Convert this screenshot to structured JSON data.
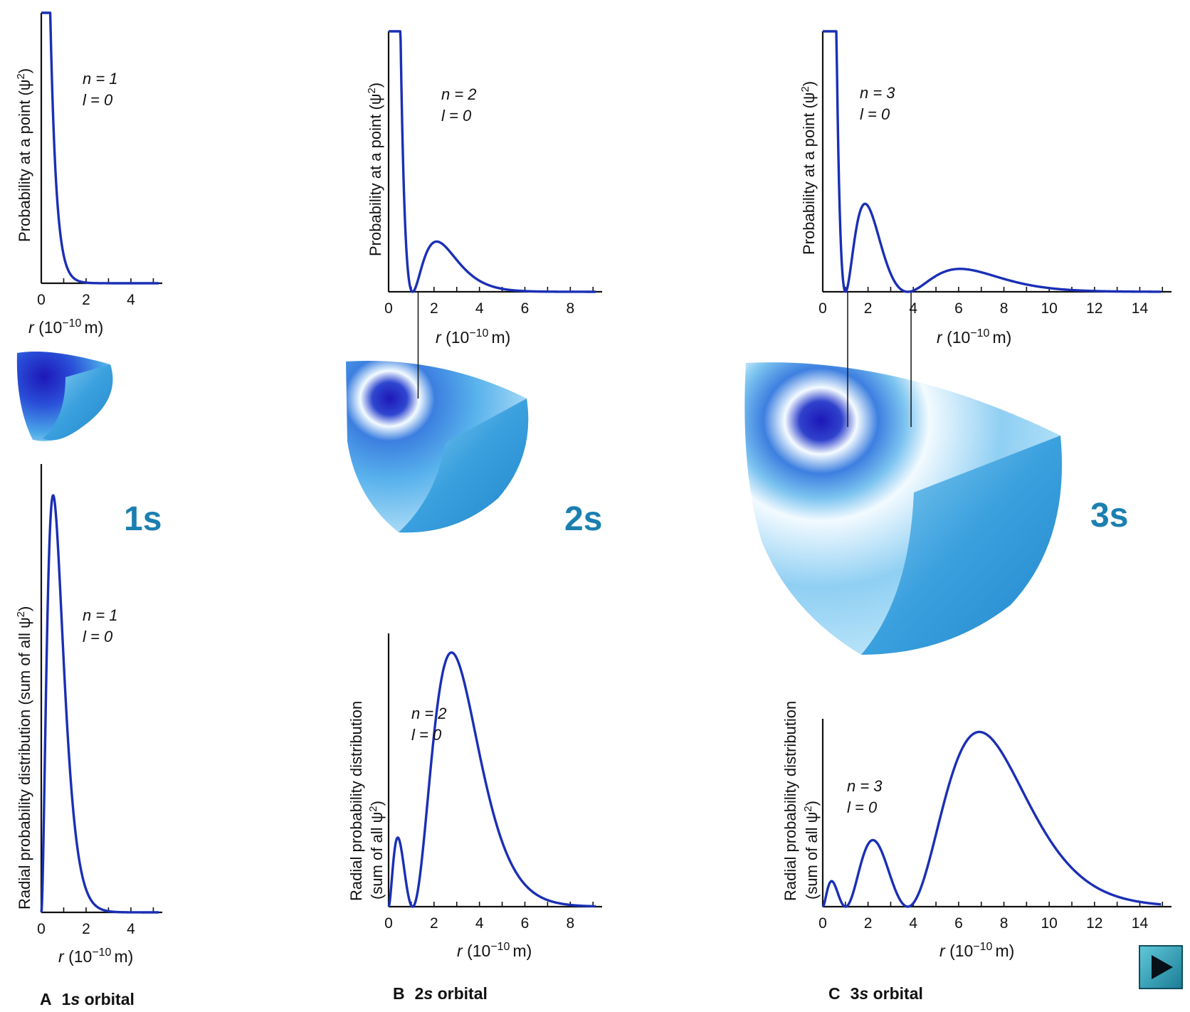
{
  "chart_data": [
    {
      "type": "line",
      "panel": "A-top",
      "ylabel": "Probability at a point (ψ²)",
      "xlabel": "r (10⁻¹⁰ m)",
      "x_ticks": [
        0,
        2,
        4
      ],
      "xlim": [
        0,
        5.4
      ],
      "annotation": [
        "n = 1",
        "l = 0"
      ],
      "series": [
        {
          "function": "psi2",
          "n": 1
        }
      ]
    },
    {
      "type": "line",
      "panel": "B-top",
      "ylabel": "Probability at a point (ψ²)",
      "xlabel": "r (10⁻¹⁰ m)",
      "x_ticks": [
        0,
        2,
        4,
        6,
        8
      ],
      "xlim": [
        0,
        9.4
      ],
      "annotation": [
        "n = 2",
        "l = 0"
      ],
      "node_guides": [
        1.3
      ],
      "series": [
        {
          "function": "psi2",
          "n": 2
        }
      ]
    },
    {
      "type": "line",
      "panel": "C-top",
      "ylabel": "Probability at a point (ψ²)",
      "xlabel": "r (10⁻¹⁰ m)",
      "x_ticks": [
        0,
        2,
        4,
        6,
        8,
        10,
        12,
        14
      ],
      "xlim": [
        0,
        15.4
      ],
      "annotation": [
        "n = 3",
        "l = 0"
      ],
      "node_guides": [
        1.1,
        3.9
      ],
      "series": [
        {
          "function": "psi2",
          "n": 3
        }
      ]
    },
    {
      "type": "line",
      "panel": "A-bottom",
      "ylabel": "Radial probability distribution (sum of all ψ²)",
      "xlabel": "r (10⁻¹⁰ m)",
      "x_ticks": [
        0,
        2,
        4
      ],
      "xlim": [
        0,
        5.4
      ],
      "annotation": [
        "n = 1",
        "l = 0"
      ],
      "series": [
        {
          "function": "radial",
          "n": 1
        }
      ]
    },
    {
      "type": "line",
      "panel": "B-bottom",
      "ylabel": "Radial probability distribution (sum of all ψ²)",
      "xlabel": "r (10⁻¹⁰ m)",
      "x_ticks": [
        0,
        2,
        4,
        6,
        8
      ],
      "xlim": [
        0,
        9.4
      ],
      "annotation": [
        "n = 2",
        "l = 0"
      ],
      "series": [
        {
          "function": "radial",
          "n": 2
        }
      ]
    },
    {
      "type": "line",
      "panel": "C-bottom",
      "ylabel": "Radial probability distribution (sum of all ψ²)",
      "xlabel": "r (10⁻¹⁰ m)",
      "x_ticks": [
        0,
        2,
        4,
        6,
        8,
        10,
        12,
        14
      ],
      "xlim": [
        0,
        15.4
      ],
      "annotation": [
        "n = 3",
        "l = 0"
      ],
      "series": [
        {
          "function": "radial",
          "n": 3
        }
      ]
    }
  ],
  "labels": {
    "xlabel_r": "r",
    "xlabel_unit": "(10",
    "xlabel_exp": "−10",
    "xlabel_m": "m)",
    "ylab_point": "Probability at a point (ψ",
    "ylab_point_end": ")",
    "ylab_radial_1": "Radial probability distribution (sum of all ψ",
    "ylab_radial_1_end": ")",
    "ylab_radial_2a": "Radial probability distribution",
    "ylab_radial_2b": "(sum of all ψ",
    "ylab_radial_2b_end": ")",
    "sup2": "2",
    "n1": "n = 1",
    "n2": "n = 2",
    "n3": "n = 3",
    "l0": "l = 0",
    "orbital_1s": "1s",
    "orbital_2s": "2s",
    "orbital_3s": "3s",
    "cap_A_letter": "A",
    "cap_A_num": "1",
    "cap_A_s": "s",
    "cap_A_word": "orbital",
    "cap_B_letter": "B",
    "cap_B_num": "2",
    "cap_B_s": "s",
    "cap_B_word": "orbital",
    "cap_C_letter": "C",
    "cap_C_num": "3",
    "cap_C_s": "s",
    "cap_C_word": "orbital"
  },
  "colors": {
    "curve": "#1a2fb5",
    "orbital_label": "#1b7fb0",
    "orbital_core": "#1d17b8",
    "orbital_shell": "#2a8fd6",
    "orbital_light": "#e8f6fd"
  },
  "controls": {
    "play_icon": "play-icon"
  }
}
